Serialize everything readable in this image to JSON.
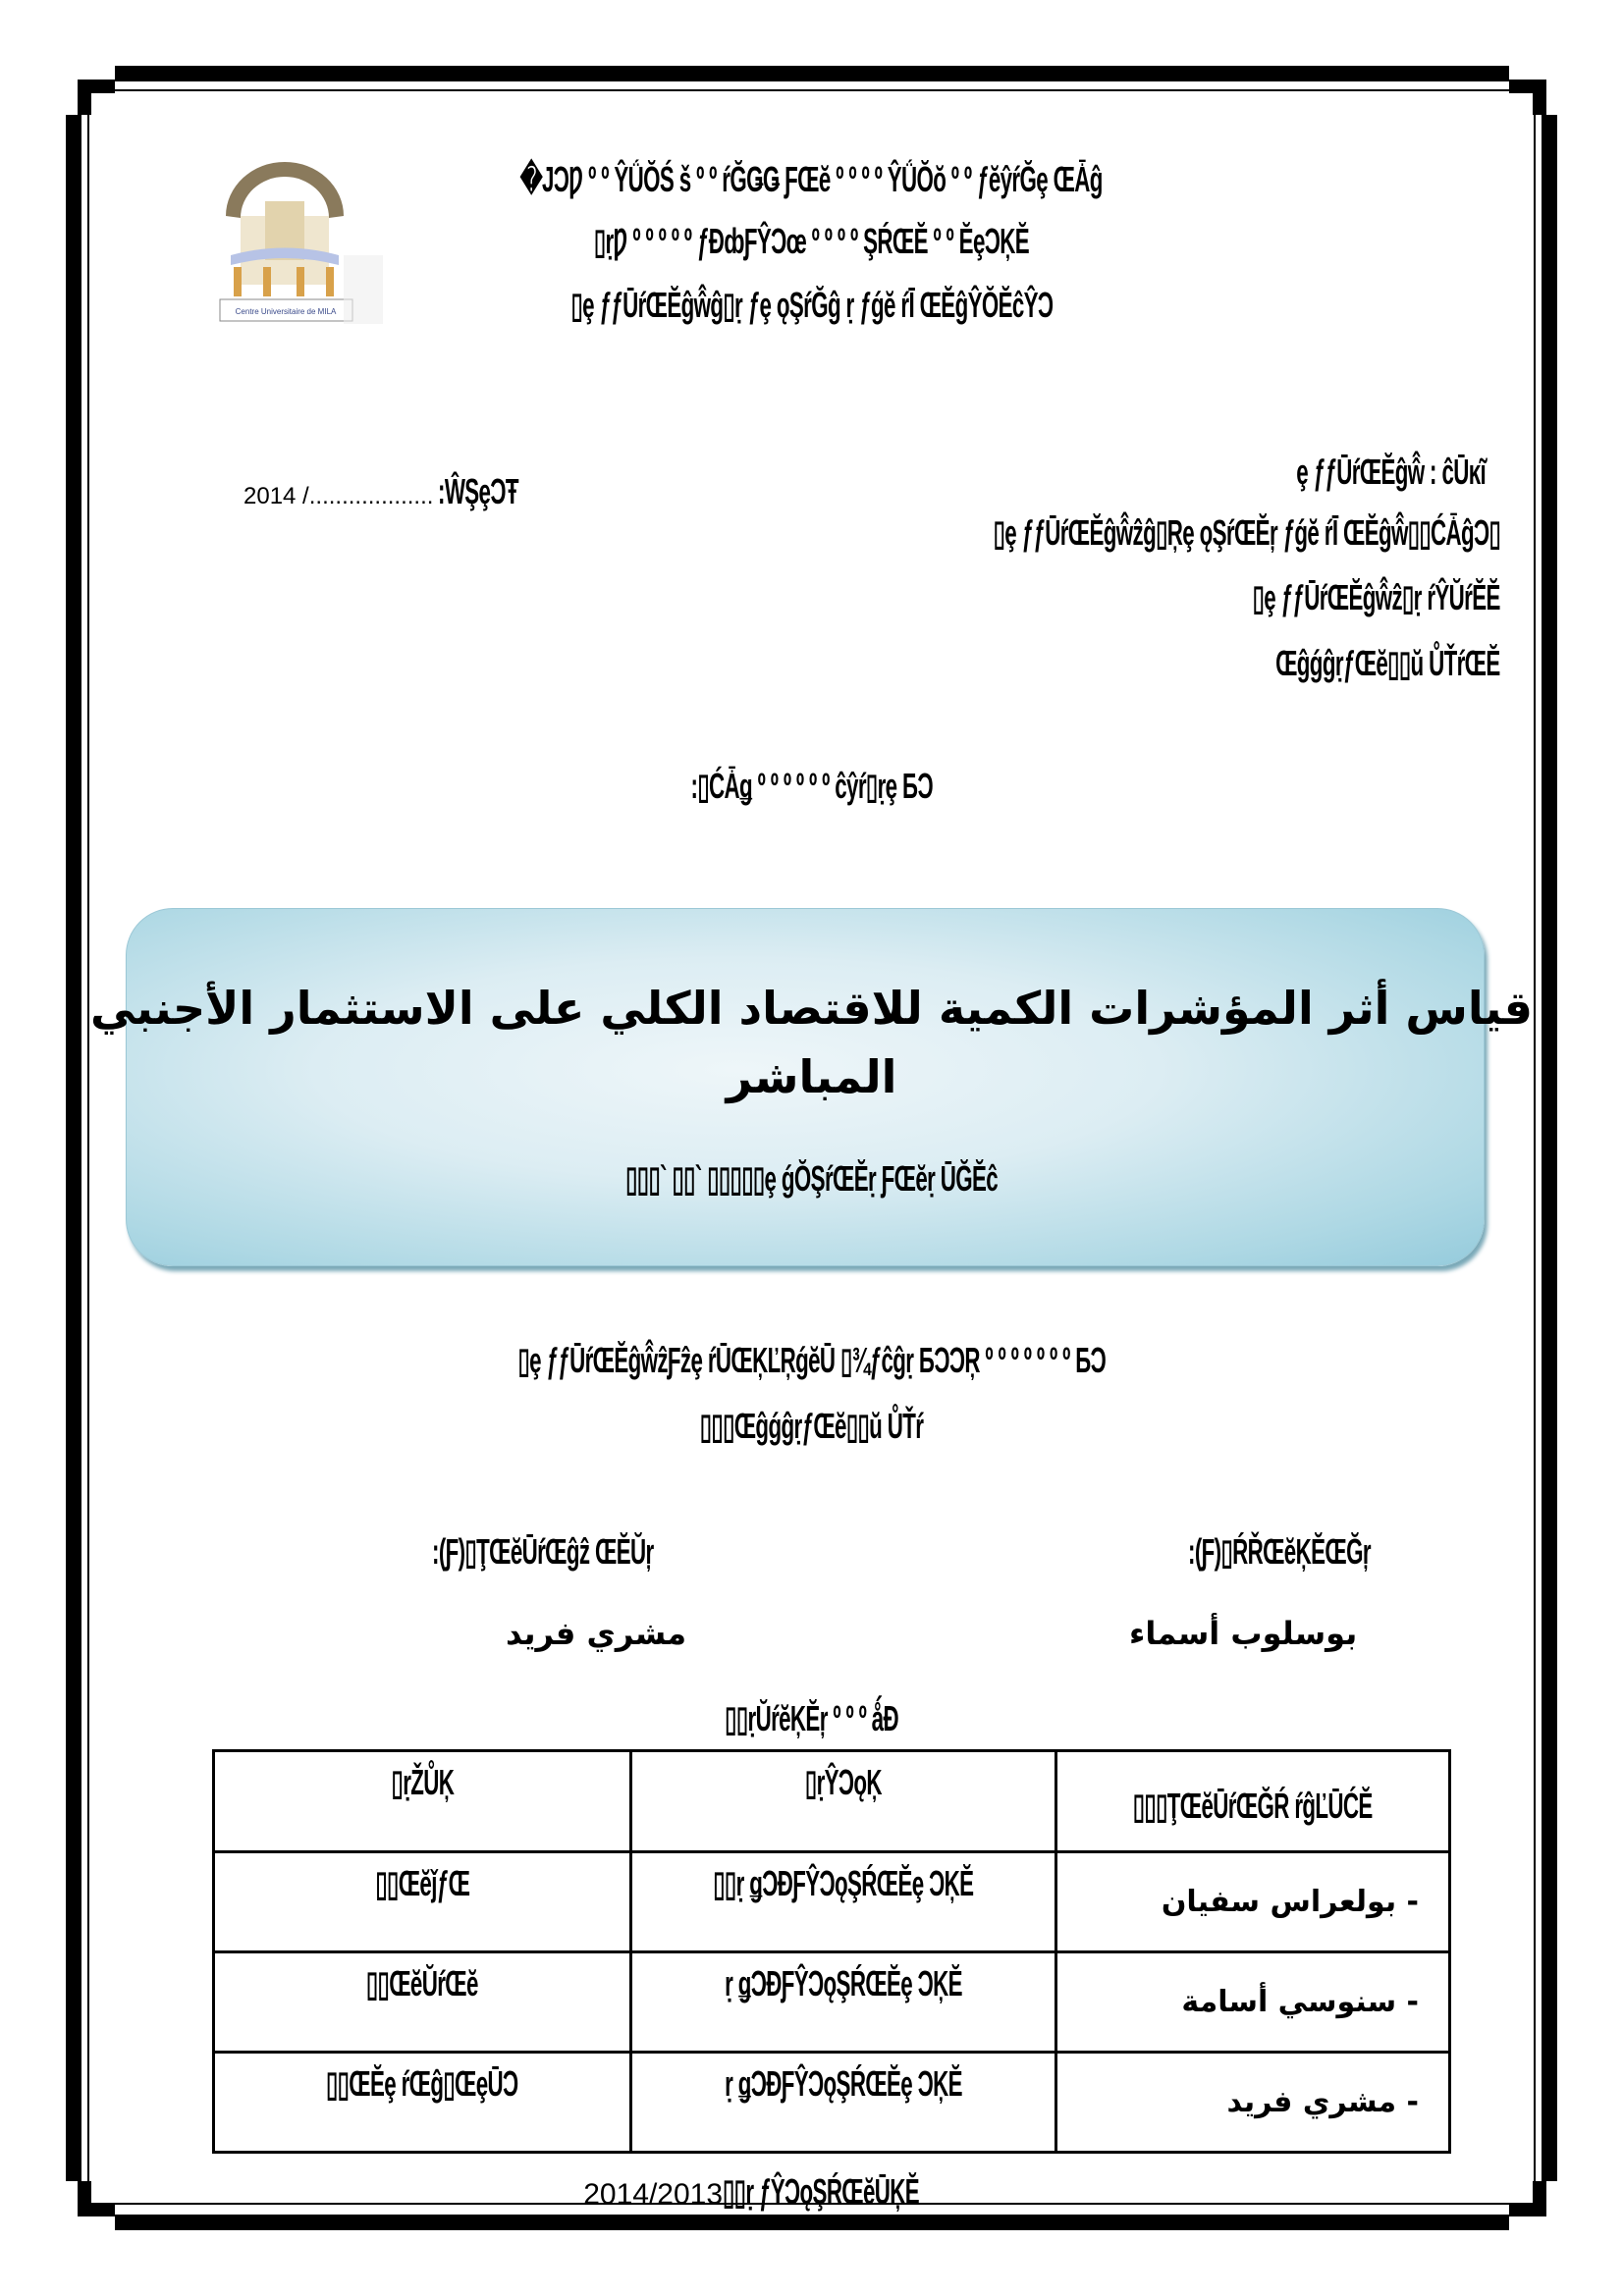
{
  "header": {
    "line1": "�JϽǷ º º ŶǗŎŚ š º º ŕĞǤǤ ƑŒĕ º º º º ŶǗŎŏ º º ƒĕŷŕĞȩ ŒǠĝ",
    "line2": "▯ṛǷ º º º º º ƒĐȸƑŶϽœ º º º º ŞŔŒĔ º º ĔȩϽĶĔ",
    "line3": "▯ȩ ƒƒŪŕŒĔĝŵ̂ĝ▯ṛ ƒȩ ǫŞŕĞĝ ṛ ƒǵĕ ŕĪ ŒĔĝŶŎĔĉŶϽ",
    "logo_text": "Centre Universitaire de MILA"
  },
  "meta": {
    "date_label": ":ŴŞȩϽŦ",
    "date_value": "2014 /...................",
    "right_lines": [
      "ȩ ƒƒŪŕŒĔĝŵ̂ : ĉŪĸĩ",
      "▯ȩ ƒƒŪŕŒĔĝŵ̂ẑĝ▯Ŗȩ ǫŞŕŒĔŗ ƒǵĕ ŕĪ ŒĔĝŵ̂▯▯ĆǠĝϽ▯",
      "▯ȩ ƒƒŪŕŒĔĝŵ̂ẑ▯ṛ ŕŶŬŕĔĔ",
      "ŒĝǵĝṛƒŒĕ▯▯ŭ ŮŤŕŒĔ"
    ],
    "center_label": ":▯ĆǠǥ º º º º º º ĉŷŕ▯ṛȩ ƂϽ"
  },
  "title": {
    "main_line1": "قياس أثر المؤشرات الكمية للاقتصاد الكلي على الاستثمار الأجنبي",
    "main_line2": "المباشر",
    "subtitle": "▯▯▯` ▯▯` ▯▯▯▯▯ȩ ǵŎŞŕŒĔṛ ƑŒĕṛ ŪĞĔĉ"
  },
  "info": {
    "line1": "▯ȩ ƒƒŪŕŒĔĝŵ̂ẑƑẑȩ ŕŪŒĶĽŖǵĕŪ ▯¾ƒĉĝṛ ƂϽϽŖ º º º º º º º ƂϽ",
    "line2": "▯▯▯ŒĝǵĝṛƒŒĕ▯▯ŭ ŮŤŕ"
  },
  "people": {
    "supervisor_label": ":(Ƒ)▯ŢŒĕŪŕŒĝẑ ŒĔŬŗ",
    "supervisor_name": "مشري فريد",
    "student_label": ":(Ƒ)▯ŔŘŒĕĶĔŒĞŗ",
    "student_name": "بوسلوب أسماء"
  },
  "committee": {
    "label": "▯▯ṛŬŕĕĶĔŗ º º º ǻĐ",
    "headers": [
      "▯ṛŽŮĶ",
      "▯ṛŶϽǫĶ",
      "▯▯▯ŢŒĕŪŕŒĞŔ ŕĝĽŪĆĔ"
    ],
    "rows": [
      {
        "role": "▯▯ŒĕǰƒŒ",
        "institution": "▯▯ṛ ǥϽĐƑŶϽǫŞŔŒĔȩ ϽĶĔ",
        "name": "- بولعراس سفيان"
      },
      {
        "role": "▯▯ŒĕŬŕŒĕ",
        "institution": "ṛ ǥϽĐƑŶϽǫŞŔŒĔȩ ϽĶĔ",
        "name": "- سنوسي أسامة"
      },
      {
        "role": "▯▯ŒĔȩ ŕŒĝ▯ŒȩŪϽ",
        "institution": "ṛ ǥϽĐƑŶϽǫŞŔŒĔȩ ϽĶĔ",
        "name": "- مشري فريد"
      }
    ]
  },
  "footer": {
    "year": "2014/2013",
    "label": "▯▯ṛ ƒŶϽǫŞŔŒĕŪĶĔ"
  }
}
